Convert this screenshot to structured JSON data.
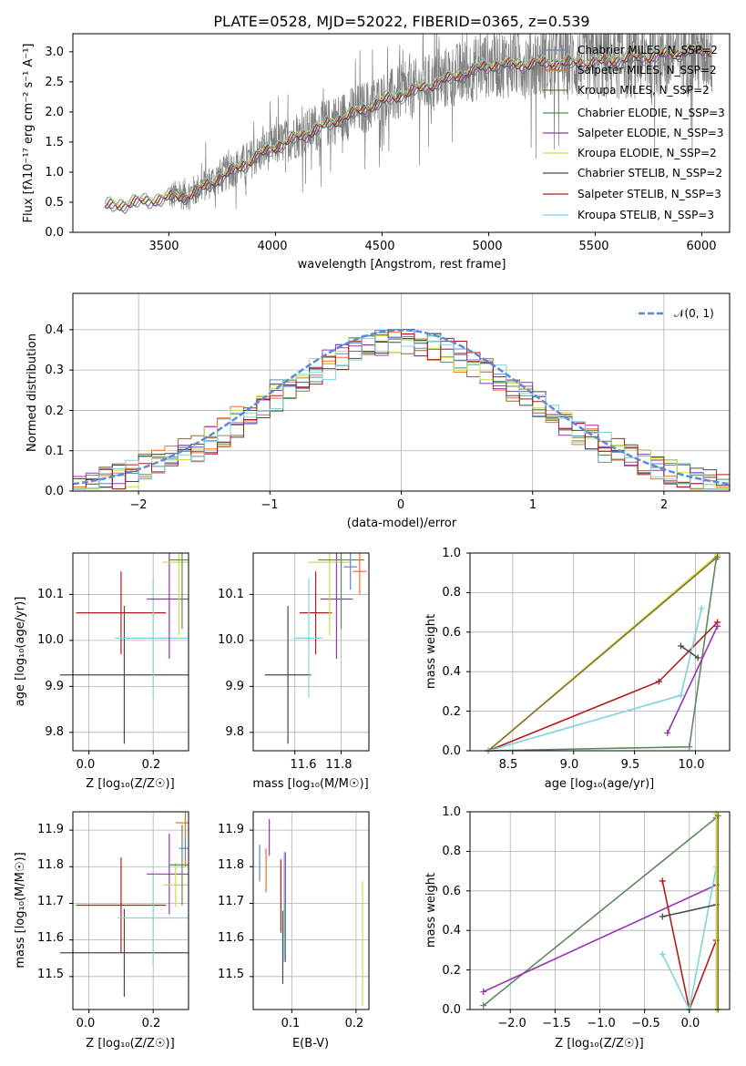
{
  "colors": {
    "chabrier_miles": "#5b8ac9",
    "salpeter_miles": "#f26d21",
    "kroupa_miles": "#8c6d31",
    "chabrier_elodie": "#5a8a5e",
    "salpeter_elodie": "#9b31b5",
    "kroupa_elodie": "#c7e03c",
    "chabrier_stelib": "#4a4a4a",
    "salpeter_stelib": "#b01c1c",
    "kroupa_stelib": "#7fd3dd",
    "data": "#808080",
    "normal": "#5b8ad6"
  },
  "chart_data": [
    {
      "id": "spectrum",
      "type": "line",
      "title": "PLATE=0528, MJD=52022, FIBERID=0365, z=0.539",
      "xlabel": "wavelength [Angstrom, rest frame]",
      "ylabel": "Flux [fλ10⁻¹⁷ erg cm⁻² s⁻¹ A⁻¹]",
      "xlim": [
        3050,
        6130
      ],
      "ylim": [
        0,
        3.3
      ],
      "xticks": [
        "3500",
        "4000",
        "4500",
        "5000",
        "5500",
        "6000"
      ],
      "yticks": [
        "0.0",
        "0.5",
        "1.0",
        "1.5",
        "2.0",
        "2.5",
        "3.0"
      ],
      "legend_position": "right",
      "model_x": [
        3200,
        3600,
        4000,
        4500,
        5000,
        5500,
        6000
      ],
      "model_y": [
        0.45,
        0.65,
        1.45,
        2.2,
        2.8,
        2.85,
        3.05
      ],
      "legend": [
        "Chabrier MILES, N_SSP=2",
        "Salpeter MILES, N_SSP=2",
        "Kroupa MILES, N_SSP=2",
        "Chabrier ELODIE, N_SSP=3",
        "Salpeter ELODIE, N_SSP=3",
        "Kroupa ELODIE, N_SSP=2",
        "Chabrier STELIB, N_SSP=2",
        "Salpeter STELIB, N_SSP=3",
        "Kroupa STELIB, N_SSP=3"
      ]
    },
    {
      "id": "residuals",
      "type": "line",
      "xlabel": "(data-model)/error",
      "ylabel": "Normed distribution",
      "xlim": [
        -2.5,
        2.5
      ],
      "ylim": [
        0,
        0.49
      ],
      "xticks": [
        "−2",
        "−1",
        "0",
        "1",
        "2"
      ],
      "yticks": [
        "0.0",
        "0.1",
        "0.2",
        "0.3",
        "0.4"
      ],
      "grid": true,
      "legend_position": "top-right",
      "legend": [
        "𝒩(0, 1)"
      ]
    },
    {
      "id": "age_vs_Z",
      "type": "scatter",
      "xlabel": "Z [log₁₀(Z/Z☉)]",
      "ylabel": "age  [log₁₀(age/yr)]",
      "xlim": [
        -0.05,
        0.31
      ],
      "ylim": [
        9.76,
        10.19
      ],
      "xticks": [
        "0.0",
        "0.2"
      ],
      "yticks": [
        "9.8",
        "9.9",
        "10.0",
        "10.1"
      ],
      "grid": true,
      "points": [
        {
          "x": 0.11,
          "y": 9.925,
          "xerr": 0.2,
          "yerr": 0.15,
          "c": "chabrier_stelib"
        },
        {
          "x": 0.1,
          "y": 10.06,
          "xerr": 0.14,
          "yerr": 0.09,
          "c": "salpeter_stelib"
        },
        {
          "x": 0.2,
          "y": 10.005,
          "xerr": 0.12,
          "yerr": 0.13,
          "c": "kroupa_stelib"
        },
        {
          "x": 0.25,
          "y": 10.09,
          "xerr": 0.07,
          "yerr": 0.13,
          "c": "salpeter_elodie"
        },
        {
          "x": 0.28,
          "y": 10.17,
          "xerr": 0.05,
          "yerr": 0.16,
          "c": "kroupa_elodie"
        },
        {
          "x": 0.29,
          "y": 10.175,
          "xerr": 0.04,
          "yerr": 0.15,
          "c": "chabrier_elodie"
        }
      ]
    },
    {
      "id": "age_vs_mass",
      "type": "scatter",
      "xlabel": "mass [log₁₀(M/M☉)]",
      "xlim": [
        11.42,
        11.92
      ],
      "ylim": [
        9.76,
        10.19
      ],
      "xticks": [
        "11.6",
        "11.8"
      ],
      "yticks": [
        "9.8",
        "9.9",
        "10.0",
        "10.1"
      ],
      "grid": true,
      "points": [
        {
          "x": 11.57,
          "y": 9.925,
          "xerr": 0.1,
          "yerr": 0.15,
          "c": "chabrier_stelib"
        },
        {
          "x": 11.69,
          "y": 10.06,
          "xerr": 0.07,
          "yerr": 0.09,
          "c": "salpeter_stelib"
        },
        {
          "x": 11.66,
          "y": 10.005,
          "xerr": 0.06,
          "yerr": 0.13,
          "c": "kroupa_stelib"
        },
        {
          "x": 11.78,
          "y": 10.09,
          "xerr": 0.07,
          "yerr": 0.13,
          "c": "salpeter_elodie"
        },
        {
          "x": 11.75,
          "y": 10.17,
          "xerr": 0.09,
          "yerr": 0.16,
          "c": "kroupa_elodie"
        },
        {
          "x": 11.8,
          "y": 10.175,
          "xerr": 0.1,
          "yerr": 0.15,
          "c": "chabrier_elodie"
        },
        {
          "x": 11.84,
          "y": 10.16,
          "xerr": 0.03,
          "yerr": 0.05,
          "c": "chabrier_miles"
        },
        {
          "x": 11.88,
          "y": 10.15,
          "xerr": 0.03,
          "yerr": 0.05,
          "c": "salpeter_miles"
        }
      ]
    },
    {
      "id": "weight_vs_age",
      "type": "line",
      "xlabel": "age  [log₁₀(age/yr)]",
      "ylabel": "mass weight",
      "xlim": [
        8.15,
        10.28
      ],
      "ylim": [
        0,
        1
      ],
      "xticks": [
        "8.5",
        "9.0",
        "9.5",
        "10.0"
      ],
      "yticks": [
        "0.0",
        "0.2",
        "0.4",
        "0.6",
        "0.8",
        "1.0"
      ],
      "grid": true,
      "series": [
        {
          "c": "kroupa_elodie",
          "x": [
            8.3,
            10.18
          ],
          "y": [
            0.0,
            0.99
          ]
        },
        {
          "c": "kroupa_miles",
          "x": [
            8.3,
            10.18
          ],
          "y": [
            0.0,
            0.98
          ]
        },
        {
          "c": "chabrier_elodie",
          "x": [
            8.3,
            9.95,
            10.17
          ],
          "y": [
            0.0,
            0.02,
            0.97
          ]
        },
        {
          "c": "salpeter_stelib",
          "x": [
            8.3,
            9.7,
            10.18
          ],
          "y": [
            0.0,
            0.35,
            0.65
          ]
        },
        {
          "c": "kroupa_stelib",
          "x": [
            8.3,
            9.88,
            10.05
          ],
          "y": [
            0.0,
            0.28,
            0.72
          ]
        },
        {
          "c": "salpeter_elodie",
          "x": [
            9.77,
            10.18
          ],
          "y": [
            0.09,
            0.63
          ]
        },
        {
          "c": "chabrier_stelib",
          "x": [
            9.88,
            10.02
          ],
          "y": [
            0.53,
            0.47
          ]
        }
      ]
    },
    {
      "id": "mass_vs_Z",
      "type": "scatter",
      "xlabel": "Z [log₁₀(Z/Z☉)]",
      "ylabel": "mass [log₁₀(M/M☉)]",
      "xlim": [
        -0.05,
        0.31
      ],
      "ylim": [
        11.41,
        11.95
      ],
      "xticks": [
        "0.0",
        "0.2"
      ],
      "yticks": [
        "11.5",
        "11.6",
        "11.7",
        "11.8",
        "11.9"
      ],
      "grid": true,
      "points": [
        {
          "x": 0.11,
          "y": 11.565,
          "xerr": 0.2,
          "yerr": 0.12,
          "c": "chabrier_stelib"
        },
        {
          "x": 0.1,
          "y": 11.695,
          "xerr": 0.14,
          "yerr": 0.13,
          "c": "salpeter_stelib"
        },
        {
          "x": 0.2,
          "y": 11.66,
          "xerr": 0.11,
          "yerr": 0.13,
          "c": "kroupa_stelib"
        },
        {
          "x": 0.25,
          "y": 11.78,
          "xerr": 0.07,
          "yerr": 0.11,
          "c": "salpeter_elodie"
        },
        {
          "x": 0.27,
          "y": 11.75,
          "xerr": 0.04,
          "yerr": 0.06,
          "c": "kroupa_elodie"
        },
        {
          "x": 0.29,
          "y": 11.805,
          "xerr": 0.04,
          "yerr": 0.11,
          "c": "chabrier_elodie"
        },
        {
          "x": 0.3,
          "y": 11.92,
          "xerr": 0.03,
          "yerr": 0.12,
          "c": "salpeter_miles"
        },
        {
          "x": 0.3,
          "y": 11.85,
          "xerr": 0.02,
          "yerr": 0.03,
          "c": "chabrier_miles"
        }
      ]
    },
    {
      "id": "mass_vs_ebv",
      "type": "scatter",
      "xlabel": "E(B-V)",
      "xlim": [
        0.04,
        0.22
      ],
      "ylim": [
        11.41,
        11.95
      ],
      "xticks": [
        "0.1",
        "0.2"
      ],
      "yticks": [
        "11.5",
        "11.6",
        "11.7",
        "11.8",
        "11.9"
      ],
      "grid": true,
      "points": [
        {
          "x": 0.05,
          "y": 11.81,
          "yerr": 0.05,
          "c": "chabrier_miles"
        },
        {
          "x": 0.06,
          "y": 11.79,
          "yerr": 0.06,
          "c": "salpeter_miles"
        },
        {
          "x": 0.065,
          "y": 11.88,
          "yerr": 0.05,
          "c": "salpeter_elodie"
        },
        {
          "x": 0.083,
          "y": 11.72,
          "yerr": 0.1,
          "c": "salpeter_stelib"
        },
        {
          "x": 0.086,
          "y": 11.58,
          "yerr": 0.1,
          "c": "chabrier_stelib"
        },
        {
          "x": 0.088,
          "y": 11.69,
          "yerr": 0.15,
          "c": "kroupa_stelib"
        },
        {
          "x": 0.09,
          "y": 11.69,
          "yerr": 0.15,
          "c": "salpeter_elodie"
        },
        {
          "x": 0.09,
          "y": 11.63,
          "yerr": 0.08,
          "c": "chabrier_elodie"
        },
        {
          "x": 0.21,
          "y": 11.59,
          "yerr": 0.17,
          "c": "kroupa_elodie"
        }
      ]
    },
    {
      "id": "weight_vs_Z",
      "type": "line",
      "xlabel": "Z [log₁₀(Z/Z☉)]",
      "ylabel": "mass weight",
      "xlim": [
        -2.45,
        0.45
      ],
      "ylim": [
        0,
        1
      ],
      "xticks": [
        "−2.0",
        "−1.5",
        "−1.0",
        "−0.5",
        "0.0"
      ],
      "yticks": [
        "0.0",
        "0.2",
        "0.4",
        "0.6",
        "0.8",
        "1.0"
      ],
      "grid": true,
      "series": [
        {
          "c": "chabrier_elodie",
          "x": [
            -2.3,
            0.3
          ],
          "y": [
            0.02,
            0.97
          ]
        },
        {
          "c": "salpeter_elodie",
          "x": [
            -2.3,
            0.3
          ],
          "y": [
            0.09,
            0.63
          ]
        },
        {
          "c": "salpeter_stelib",
          "x": [
            -0.3,
            0.0,
            0.3
          ],
          "y": [
            0.65,
            0.0,
            0.35
          ]
        },
        {
          "c": "kroupa_stelib",
          "x": [
            -0.3,
            0.0,
            0.3
          ],
          "y": [
            0.28,
            0.0,
            0.72
          ]
        },
        {
          "c": "chabrier_stelib",
          "x": [
            -0.3,
            0.3
          ],
          "y": [
            0.47,
            0.53
          ]
        },
        {
          "c": "kroupa_elodie",
          "x": [
            0.3,
            0.3
          ],
          "y": [
            0.0,
            0.99
          ]
        },
        {
          "c": "kroupa_miles",
          "x": [
            0.32,
            0.32
          ],
          "y": [
            0.0,
            0.98
          ]
        }
      ]
    }
  ]
}
